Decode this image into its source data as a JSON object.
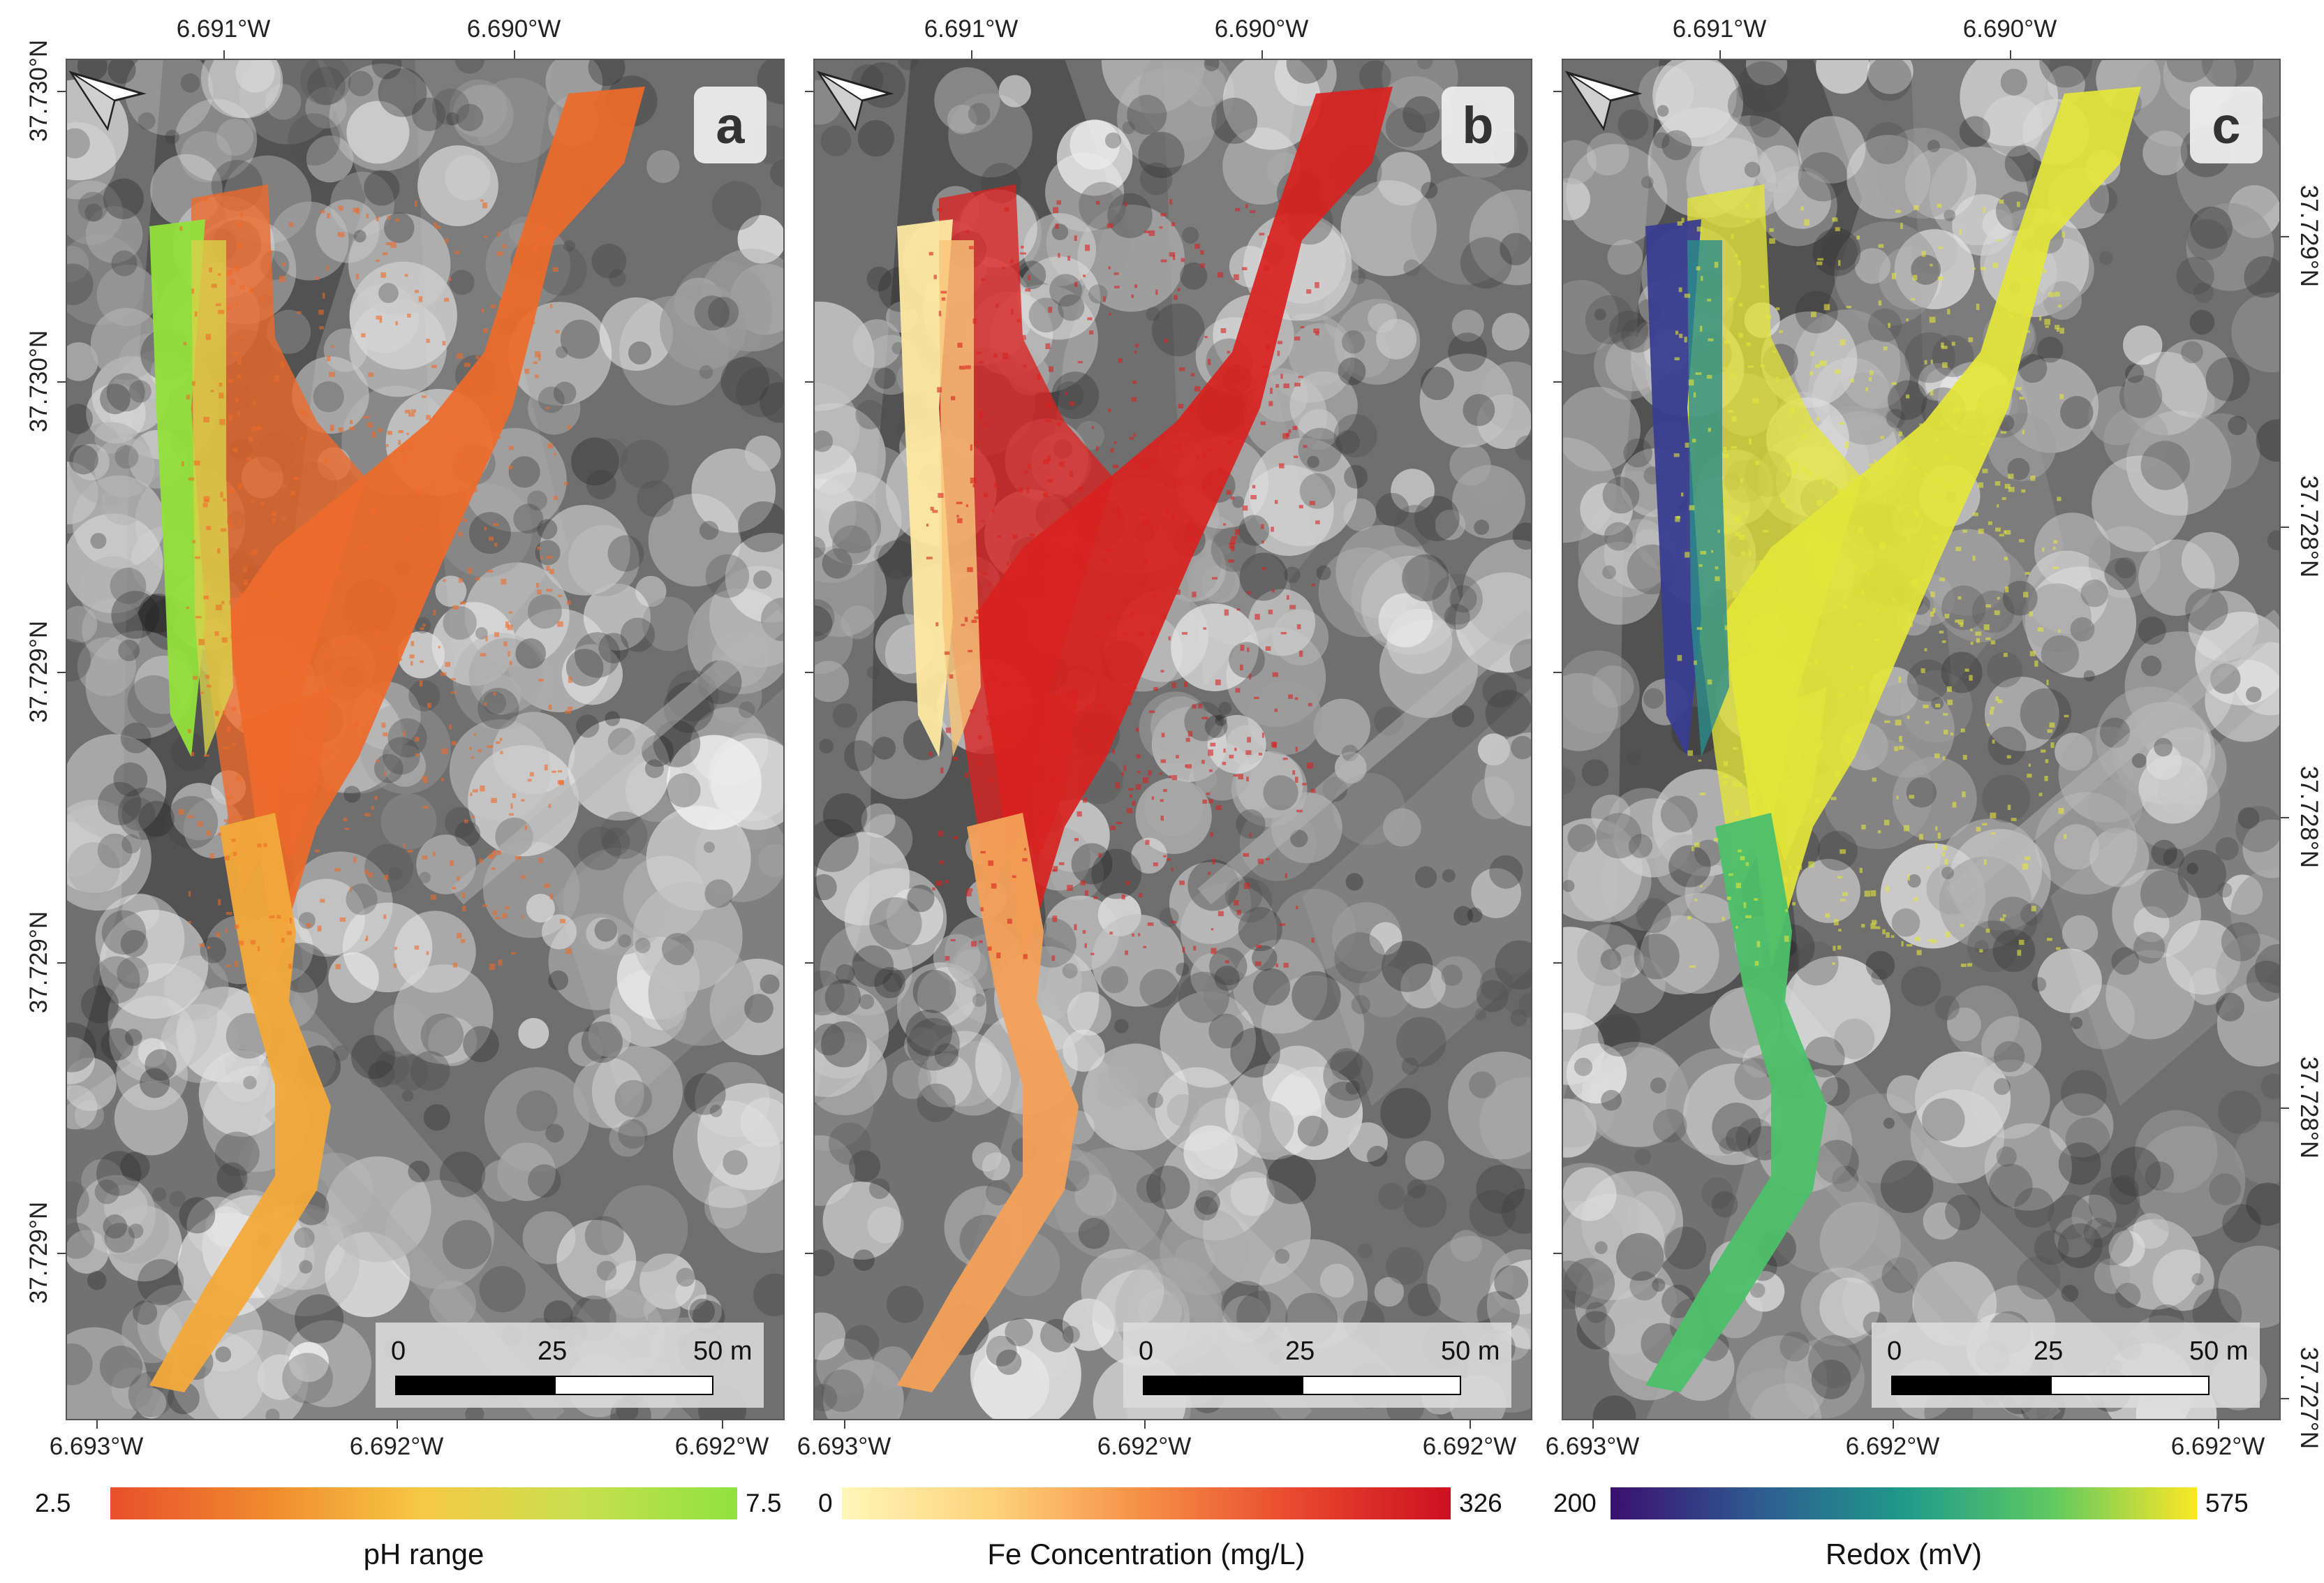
{
  "tick_labels": {
    "top": [
      "6.691°W",
      "6.690°W"
    ],
    "bottom": [
      "6.693°W",
      "6.692°W",
      "6.692°W"
    ],
    "left": [
      "37.730°N",
      "37.730°N",
      "37.729°N",
      "37.729°N",
      "37.729°N"
    ],
    "right": [
      "37.729°N",
      "37.728°N",
      "37.728°N",
      "37.728°N",
      "37.727°N"
    ]
  },
  "scale_bar": {
    "labels": [
      "0",
      "25",
      "50 m"
    ]
  },
  "north_arrow": "north-arrow-icon",
  "panels": [
    {
      "id": "a",
      "letter": "a",
      "legend": {
        "min": "2.5",
        "max": "7.5",
        "title": "pH range",
        "colors": [
          "#e8502a",
          "#f08a2e",
          "#f6c944",
          "#c8df4e",
          "#8fe23e"
        ]
      },
      "overlay_colors": {
        "main": "#ee6a2a",
        "lower": "#f2a93a",
        "left_edge": "#92e03c",
        "left_mid": "#d8d24a"
      }
    },
    {
      "id": "b",
      "letter": "b",
      "legend": {
        "min": "0",
        "max": "326",
        "title": "Fe Concentration (mg/L)",
        "colors": [
          "#fff7b8",
          "#fdd27a",
          "#f58e45",
          "#e8472e",
          "#cc1020"
        ]
      },
      "overlay_colors": {
        "main": "#d8221f",
        "lower": "#f3a158",
        "left_edge": "#fde9a2",
        "left_mid": "#f7c67a"
      }
    },
    {
      "id": "c",
      "letter": "c",
      "legend": {
        "min": "200",
        "max": "575",
        "title": "Redox (mV)",
        "colors": [
          "#3b0f6f",
          "#2e5b91",
          "#1f9a8a",
          "#5ec962",
          "#fde725"
        ]
      },
      "overlay_colors": {
        "main": "#e4e63a",
        "lower": "#4cc06a",
        "left_edge": "#3a3d8f",
        "left_mid": "#2a8c8c"
      }
    }
  ]
}
